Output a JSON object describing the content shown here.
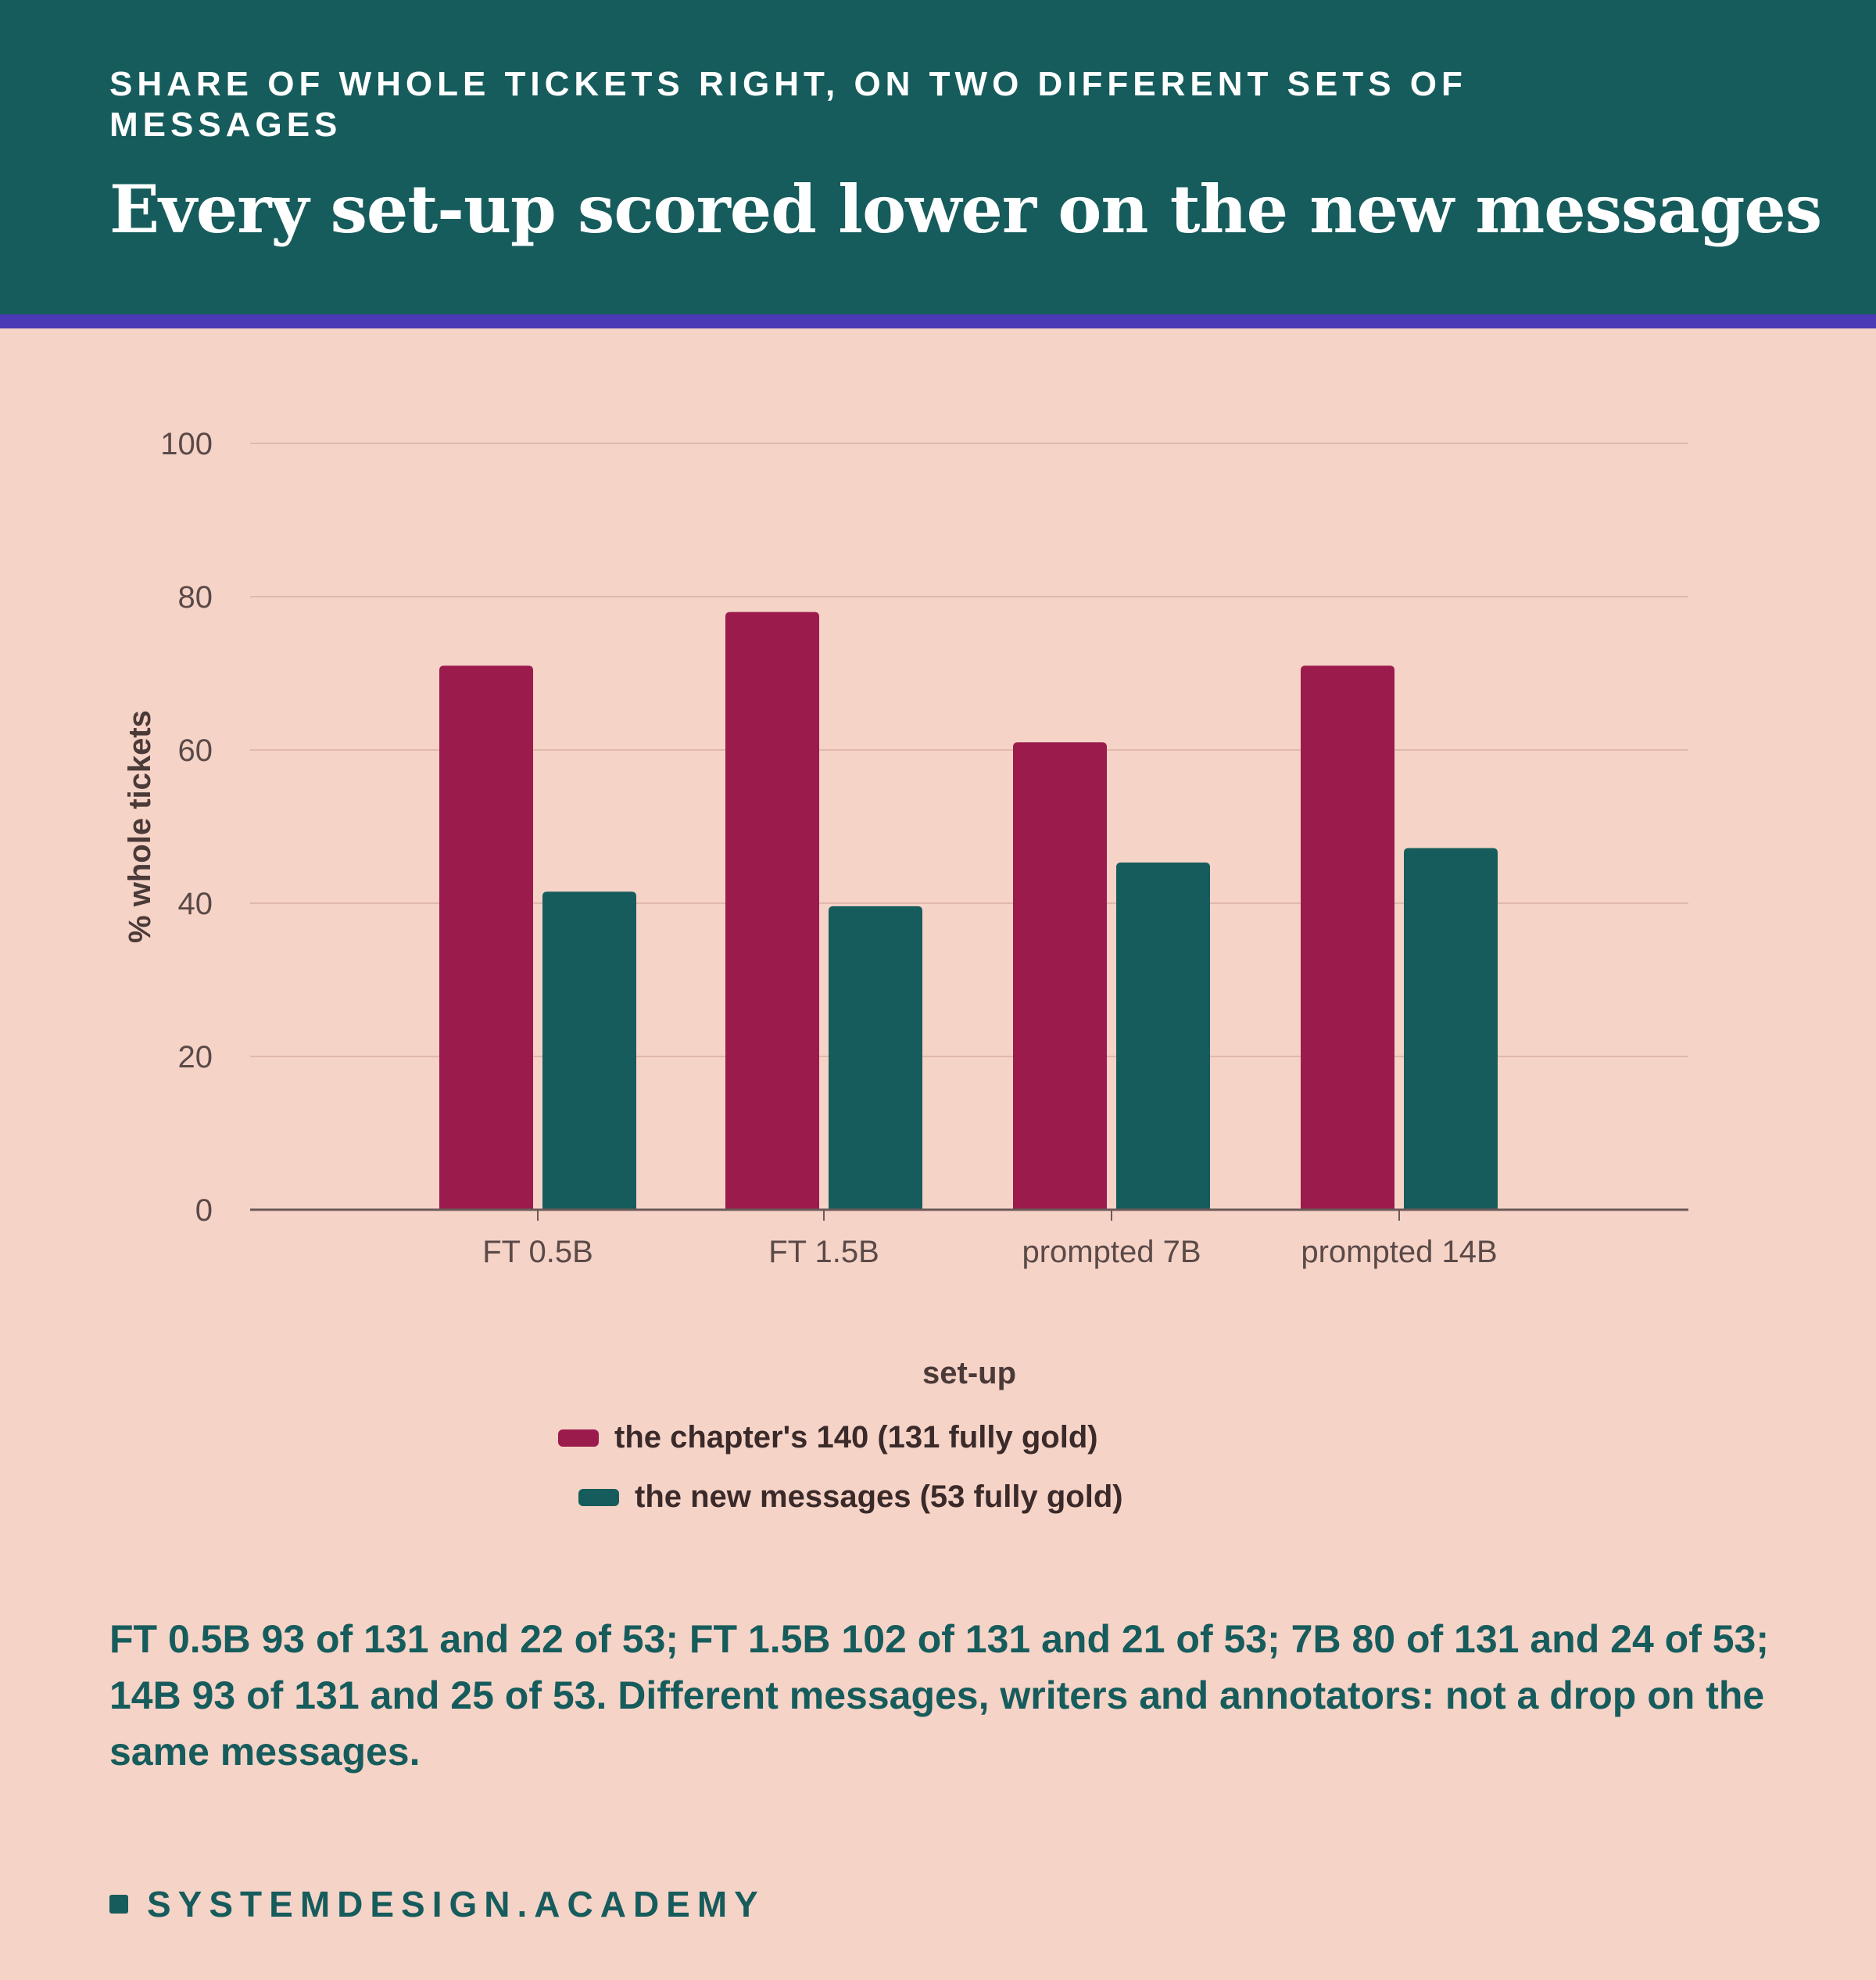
{
  "header": {
    "kicker": "SHARE OF WHOLE TICKETS RIGHT, ON TWO DIFFERENT SETS OF MESSAGES",
    "title": "Every set-up scored lower on the new messages"
  },
  "colors": {
    "header_bg": "#165c5c",
    "accent_rule": "#4a3ab4",
    "background": "#f6d3c7",
    "series_1": "#9b1b4c",
    "series_2": "#165c5c"
  },
  "chart_data": {
    "type": "bar",
    "categories": [
      "FT 0.5B",
      "FT 1.5B",
      "prompted 7B",
      "prompted 14B"
    ],
    "series": [
      {
        "name": "the chapter's 140 (131 fully gold)",
        "values": [
          71,
          78,
          61,
          71
        ]
      },
      {
        "name": "the new messages (53 fully gold)",
        "values": [
          41.5,
          39.6,
          45.3,
          47.2
        ]
      }
    ],
    "xlabel": "set-up",
    "ylabel": "% whole tickets",
    "ylim": [
      0,
      100
    ],
    "yticks": [
      "0",
      "20",
      "40",
      "60",
      "80",
      "100"
    ],
    "grid": true,
    "legend_position": "bottom-center"
  },
  "note": "FT 0.5B 93 of 131 and 22 of 53; FT 1.5B 102 of 131 and 21 of 53; 7B 80 of 131 and 24 of 53; 14B 93 of 131 and 25 of 53. Different messages, writers and annotators: not a drop on the same messages.",
  "footer": {
    "brand": "SYSTEMDESIGN.ACADEMY"
  }
}
